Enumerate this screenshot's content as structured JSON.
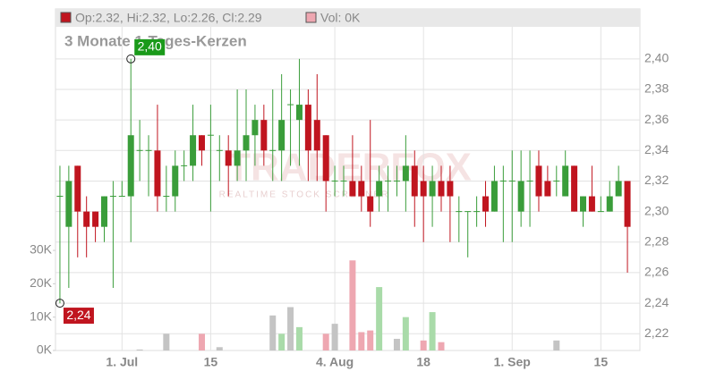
{
  "chart_data": {
    "type": "candlestick",
    "title": "3 Monate 1-Tages-Kerzen",
    "legend": [
      "Op:2.32, Hi:2.32, Lo:2.26, Cl:2.29",
      "Vol: 0K"
    ],
    "watermark": [
      "TRADERFOX",
      "REALTIME STOCK SCREENER"
    ],
    "categories": [
      null,
      null,
      null,
      null,
      null,
      null,
      null,
      "1. Jul",
      null,
      null,
      null,
      null,
      null,
      null,
      null,
      null,
      null,
      "15",
      null,
      null,
      null,
      null,
      null,
      null,
      null,
      null,
      null,
      null,
      null,
      null,
      null,
      "4. Aug",
      null,
      null,
      null,
      null,
      null,
      null,
      null,
      null,
      null,
      "18",
      null,
      null,
      null,
      null,
      null,
      null,
      null,
      null,
      null,
      "1. Sep",
      null,
      null,
      null,
      null,
      null,
      null,
      null,
      null,
      null,
      "15",
      null,
      null,
      null
    ],
    "open": [
      2.31,
      2.29,
      2.33,
      2.3,
      2.3,
      2.29,
      2.31,
      2.31,
      2.31,
      2.34,
      2.34,
      2.34,
      2.31,
      2.31,
      2.33,
      2.33,
      2.35,
      2.35,
      2.34,
      2.34,
      2.33,
      2.34,
      2.35,
      2.36,
      2.34,
      2.34,
      2.37,
      2.36,
      2.37,
      2.36,
      2.35,
      2.32,
      2.32,
      2.32,
      2.32,
      2.31,
      2.31,
      2.32,
      2.32,
      2.32,
      2.33,
      2.32,
      2.31,
      2.32,
      2.32,
      2.3,
      2.3,
      2.3,
      2.31,
      2.3,
      2.32,
      2.32,
      2.3,
      2.32,
      2.33,
      2.32,
      2.32,
      2.31,
      2.33,
      2.3,
      2.31,
      2.3,
      2.3,
      2.31,
      2.32
    ],
    "high": [
      2.33,
      2.33,
      2.33,
      2.31,
      2.3,
      2.31,
      2.32,
      2.32,
      2.4,
      2.36,
      2.35,
      2.37,
      2.33,
      2.34,
      2.34,
      2.37,
      2.35,
      2.37,
      2.35,
      2.35,
      2.38,
      2.38,
      2.37,
      2.37,
      2.38,
      2.39,
      2.38,
      2.4,
      2.38,
      2.39,
      2.35,
      2.33,
      2.33,
      2.35,
      2.33,
      2.36,
      2.33,
      2.33,
      2.33,
      2.35,
      2.34,
      2.33,
      2.33,
      2.33,
      2.33,
      2.31,
      2.3,
      2.31,
      2.32,
      2.33,
      2.33,
      2.34,
      2.34,
      2.34,
      2.34,
      2.33,
      2.33,
      2.34,
      2.33,
      2.31,
      2.33,
      2.31,
      2.32,
      2.33,
      2.32
    ],
    "low": [
      2.24,
      2.25,
      2.27,
      2.27,
      2.28,
      2.28,
      2.25,
      2.31,
      2.28,
      2.32,
      2.31,
      2.3,
      2.3,
      2.3,
      2.32,
      2.32,
      2.33,
      2.3,
      2.32,
      2.31,
      2.32,
      2.32,
      2.33,
      2.33,
      2.32,
      2.32,
      2.33,
      2.33,
      2.32,
      2.32,
      2.3,
      2.31,
      2.31,
      2.31,
      2.3,
      2.29,
      2.3,
      2.3,
      2.31,
      2.3,
      2.29,
      2.28,
      2.29,
      2.3,
      2.28,
      2.28,
      2.27,
      2.29,
      2.29,
      2.3,
      2.28,
      2.28,
      2.29,
      2.29,
      2.3,
      2.31,
      2.31,
      2.31,
      2.3,
      2.29,
      2.3,
      2.3,
      2.3,
      2.31,
      2.26
    ],
    "close": [
      2.31,
      2.32,
      2.3,
      2.29,
      2.29,
      2.31,
      2.31,
      2.31,
      2.35,
      2.34,
      2.34,
      2.31,
      2.31,
      2.33,
      2.33,
      2.35,
      2.34,
      2.35,
      2.34,
      2.33,
      2.34,
      2.35,
      2.36,
      2.34,
      2.34,
      2.36,
      2.37,
      2.37,
      2.34,
      2.34,
      2.32,
      2.32,
      2.32,
      2.31,
      2.31,
      2.3,
      2.32,
      2.32,
      2.32,
      2.33,
      2.31,
      2.31,
      2.32,
      2.31,
      2.31,
      2.3,
      2.3,
      2.3,
      2.3,
      2.32,
      2.32,
      2.32,
      2.32,
      2.32,
      2.31,
      2.31,
      2.32,
      2.33,
      2.3,
      2.31,
      2.3,
      2.3,
      2.31,
      2.32,
      2.29
    ],
    "volume": [
      0,
      0,
      0,
      0,
      0,
      0,
      0,
      0,
      0,
      0.3,
      0,
      0,
      5,
      0,
      0,
      0,
      5,
      0,
      1,
      0,
      0,
      0,
      0,
      0,
      10.5,
      5,
      13,
      7,
      0,
      0,
      5,
      8,
      0,
      27,
      5.5,
      6,
      19,
      0,
      3.5,
      10,
      0,
      3,
      11.5,
      2.5,
      0,
      0,
      0,
      0,
      0,
      0,
      0,
      0,
      0,
      0,
      0,
      0,
      3,
      0,
      0,
      0,
      0,
      0,
      0,
      0,
      0
    ],
    "up_color": "#3a9d3a",
    "down_color": "#c0151f",
    "volume_colors": {
      "up": "#a9dba9",
      "down": "#eea7b1",
      "flat": "#c4c4c4"
    },
    "ylim": [
      2.209,
      2.421
    ],
    "yticks": [
      {
        "value": 2.22,
        "label": "2,22"
      },
      {
        "value": 2.24,
        "label": "2,24"
      },
      {
        "value": 2.26,
        "label": "2,26"
      },
      {
        "value": 2.28,
        "label": "2,28"
      },
      {
        "value": 2.3,
        "label": "2,30"
      },
      {
        "value": 2.32,
        "label": "2,32"
      },
      {
        "value": 2.34,
        "label": "2,34"
      },
      {
        "value": 2.36,
        "label": "2,36"
      },
      {
        "value": 2.38,
        "label": "2,38"
      },
      {
        "value": 2.4,
        "label": "2,40"
      }
    ],
    "y2lim": [
      0,
      97
    ],
    "y2ticks": [
      {
        "value": 0,
        "label": "0K"
      },
      {
        "value": 10,
        "label": "10K"
      },
      {
        "value": 20,
        "label": "20K"
      },
      {
        "value": 30,
        "label": "30K"
      }
    ],
    "annotations": [
      {
        "label": "2,40",
        "value": 2.4,
        "index": 8,
        "color": "#1a9a1a"
      },
      {
        "label": "2,24",
        "value": 2.24,
        "index": 0,
        "color": "#c0151f"
      }
    ],
    "grid": true
  }
}
